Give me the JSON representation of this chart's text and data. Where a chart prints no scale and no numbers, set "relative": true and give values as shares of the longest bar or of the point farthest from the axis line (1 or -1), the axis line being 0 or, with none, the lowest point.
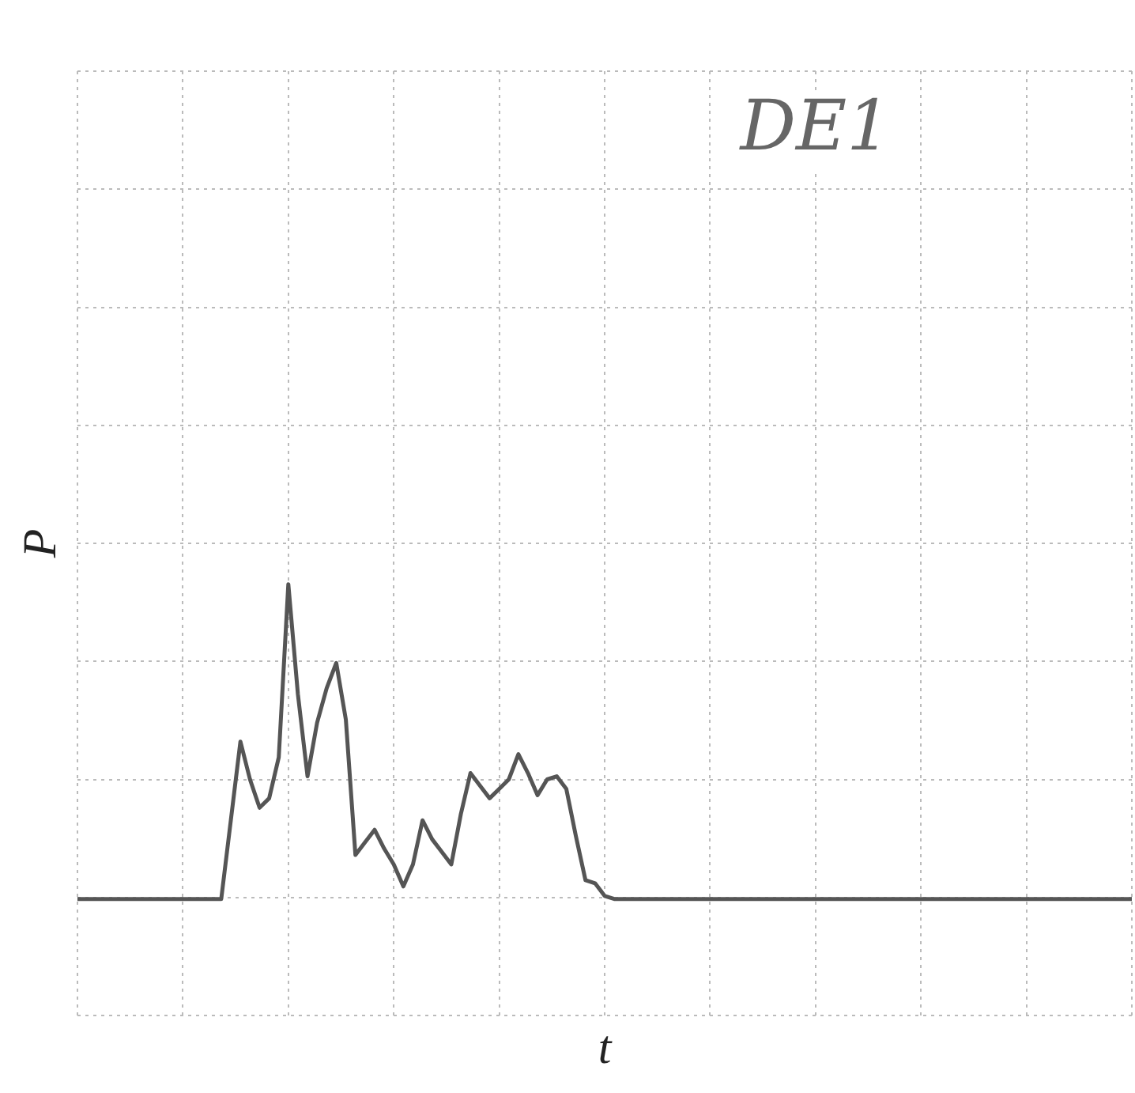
{
  "chart_data": {
    "type": "line",
    "xlabel": "t",
    "ylabel": "P",
    "relative": true,
    "grid": true,
    "annotations": [
      "DE1"
    ],
    "categories": [
      null,
      null,
      null,
      null,
      null,
      null,
      null,
      null,
      null,
      null,
      null,
      null,
      null,
      null,
      null,
      null,
      null,
      null,
      null,
      null,
      null,
      null,
      null,
      null,
      null,
      null,
      null,
      null,
      null,
      null,
      null,
      null,
      null,
      null,
      null,
      null,
      null,
      null,
      null,
      null,
      null,
      null,
      null,
      null,
      null,
      null,
      null,
      null,
      null,
      null,
      null,
      null,
      null,
      null,
      null,
      null,
      null,
      null,
      null,
      null,
      null,
      null,
      null,
      null,
      null,
      null,
      null,
      null,
      null,
      null,
      null,
      null,
      null,
      null,
      null,
      null,
      null,
      null,
      null,
      null,
      null,
      null,
      null,
      null,
      null,
      null,
      null,
      null,
      null,
      null,
      null,
      null,
      null,
      null,
      null,
      null,
      null,
      null,
      null,
      null,
      null,
      null,
      null,
      null,
      null,
      null,
      null,
      null,
      null,
      null,
      null
    ],
    "series": [
      {
        "color": "#555555",
        "values": [
          0,
          0,
          0,
          0,
          0,
          0,
          0,
          0,
          0,
          0,
          0,
          0,
          0,
          0,
          0,
          0,
          0.25,
          0.5,
          0.38,
          0.29,
          0.32,
          0.45,
          1,
          0.65,
          0.39,
          0.56,
          0.67,
          0.75,
          0.57,
          0.14,
          0.18,
          0.22,
          0.16,
          0.11,
          0.04,
          0.11,
          0.25,
          0.19,
          0.15,
          0.11,
          0.27,
          0.4,
          0.36,
          0.32,
          0.35,
          0.38,
          0.46,
          0.4,
          0.33,
          0.38,
          0.39,
          0.35,
          0.2,
          0.06,
          0.05,
          0.01,
          0,
          0,
          0,
          0,
          0,
          0,
          0,
          0,
          0,
          0,
          0,
          0,
          0,
          0,
          0,
          0,
          0,
          0,
          0,
          0,
          0,
          0,
          0,
          0,
          0,
          0,
          0,
          0,
          0,
          0,
          0,
          0,
          0,
          0,
          0,
          0,
          0,
          0,
          0,
          0,
          0,
          0,
          0,
          0,
          0,
          0,
          0,
          0,
          0,
          0,
          0,
          0,
          0,
          0,
          0
        ]
      }
    ]
  }
}
